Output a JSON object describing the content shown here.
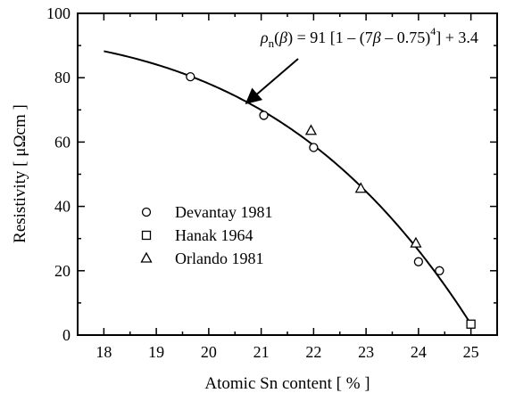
{
  "chart_data": {
    "type": "scatter",
    "xlabel": "Atomic Sn content [ % ]",
    "ylabel": "Resistivity [ μΩcm ]",
    "xlim": [
      17.5,
      25.5
    ],
    "ylim": [
      0,
      100
    ],
    "xticks": [
      18,
      19,
      20,
      21,
      22,
      23,
      24,
      25
    ],
    "yticks": [
      0,
      20,
      40,
      60,
      80,
      100
    ],
    "grid": false,
    "legend_position": "center-left",
    "series": [
      {
        "name": "Devantay 1981",
        "marker": "circle",
        "x": [
          19.65,
          21.05,
          22.0,
          24.0,
          24.4
        ],
        "y": [
          80.3,
          68.3,
          58.3,
          22.8,
          20.0
        ]
      },
      {
        "name": "Hanak 1964",
        "marker": "square",
        "x": [
          25.0
        ],
        "y": [
          3.4
        ]
      },
      {
        "name": "Orlando 1981",
        "marker": "triangle",
        "x": [
          21.95,
          22.9,
          23.95
        ],
        "y": [
          63.5,
          45.5,
          28.5
        ]
      }
    ],
    "fit_curve": {
      "formula": "ρn(β) = 91 [1 − (7β − 0.75)^4] + 3.4",
      "x_range": [
        18,
        25
      ]
    },
    "annotation": {
      "lhs_rho": "ρ",
      "lhs_sub": "n",
      "lhs_open": "(",
      "lhs_beta": "β",
      "lhs_close": ")",
      "rhs_a": " = 91 [1 – (7",
      "rhs_beta": "β",
      "rhs_b": " – 0.75)",
      "exponent": "4",
      "rhs_c": "] + 3.4",
      "arrow_target": {
        "x": 20.7,
        "y": 71.5
      }
    }
  }
}
